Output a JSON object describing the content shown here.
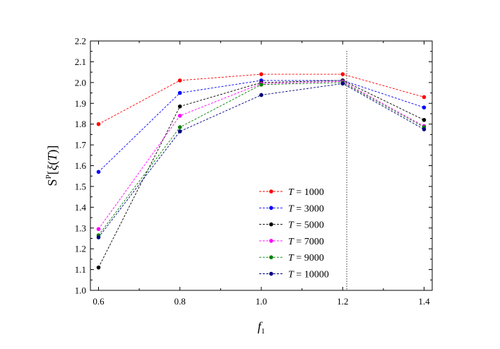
{
  "chart_data": {
    "type": "line",
    "x": [
      0.6,
      0.8,
      1.0,
      1.2,
      1.4
    ],
    "xlabel": {
      "main": "f",
      "sub": "1"
    },
    "ylabel": {
      "main": "S",
      "sup": "P",
      "bracket_open": "[",
      "xi": "ξ",
      "paren_open": "(",
      "t": "T",
      "paren_close": ")",
      "bracket_close": "]"
    },
    "xlim": [
      0.58,
      1.42
    ],
    "ylim": [
      1.0,
      2.2
    ],
    "xticks": [
      "0.6",
      "0.8",
      "1.0",
      "1.2",
      "1.4"
    ],
    "yticks": [
      "1.0",
      "1.1",
      "1.2",
      "1.3",
      "1.4",
      "1.5",
      "1.6",
      "1.7",
      "1.8",
      "1.9",
      "2.0",
      "2.1",
      "2.2"
    ],
    "vline_x": 1.21,
    "grid": false,
    "legend_position": "center-bottom",
    "series": [
      {
        "name": "T = 1000",
        "legend_var": "T",
        "legend_rest": " = 1000",
        "color": "#ff0000",
        "values": [
          1.8,
          2.01,
          2.04,
          2.04,
          1.93
        ]
      },
      {
        "name": "T = 3000",
        "legend_var": "T",
        "legend_rest": " = 3000",
        "color": "#0000ff",
        "values": [
          1.57,
          1.95,
          2.01,
          2.01,
          1.88
        ]
      },
      {
        "name": "T = 5000",
        "legend_var": "T",
        "legend_rest": " = 5000",
        "color": "#000000",
        "values": [
          1.11,
          1.885,
          2.0,
          2.01,
          1.82
        ]
      },
      {
        "name": "T = 7000",
        "legend_var": "T",
        "legend_rest": " = 7000",
        "color": "#ff00ff",
        "values": [
          1.295,
          1.84,
          1.995,
          2.005,
          1.79
        ]
      },
      {
        "name": "T = 9000",
        "legend_var": "T",
        "legend_rest": " = 9000",
        "color": "#008000",
        "values": [
          1.265,
          1.785,
          1.99,
          2.0,
          1.785
        ]
      },
      {
        "name": "T = 10000",
        "legend_var": "T",
        "legend_rest": " = 10000",
        "color": "#000080",
        "values": [
          1.255,
          1.765,
          1.94,
          1.995,
          1.775
        ]
      }
    ]
  }
}
